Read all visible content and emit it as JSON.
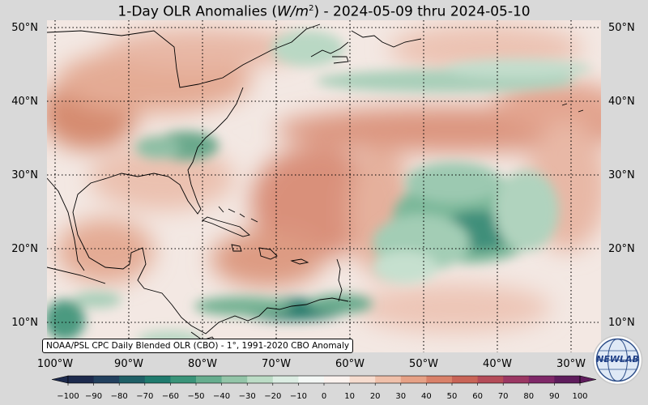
{
  "title": {
    "prefix": "1-Day OLR Anomalies (",
    "unit_base": "W/m",
    "unit_exp": "2",
    "suffix": ") - 2024-05-09 thru 2024-05-10"
  },
  "credit": "NOAA/PSL CPC Daily Blended OLR (CBO) - 1°, 1991-2020 CBO Anomaly",
  "lat_labels": [
    "50°N",
    "40°N",
    "30°N",
    "20°N",
    "10°N"
  ],
  "lon_labels": [
    "100°W",
    "90°W",
    "80°W",
    "70°W",
    "60°W",
    "50°W",
    "40°W",
    "30°W"
  ],
  "colorbar": {
    "ticks": [
      "−100",
      "−90",
      "−80",
      "−70",
      "−60",
      "−50",
      "−40",
      "−30",
      "−20",
      "−10",
      "0",
      "10",
      "20",
      "30",
      "40",
      "50",
      "60",
      "70",
      "80",
      "90",
      "100"
    ],
    "colors": [
      "#1d2a4d",
      "#22405e",
      "#1f5f66",
      "#1f7a6d",
      "#3a9479",
      "#66ad8e",
      "#93c5a8",
      "#bcdcc6",
      "#dcede3",
      "#f4f8f6",
      "#fbf3ef",
      "#f6dccf",
      "#efc0aa",
      "#e6a186",
      "#d98169",
      "#c96457",
      "#b44c58",
      "#9b3763",
      "#7f2868",
      "#5e1c5c"
    ]
  },
  "logo": {
    "text": "NEWLAB",
    "icon": "globe-logo-icon"
  }
}
